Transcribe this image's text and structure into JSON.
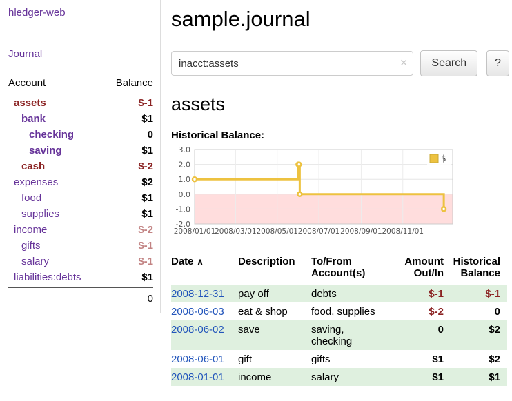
{
  "app": {
    "brand": "hledger-web",
    "nav": {
      "journal_label": "Journal"
    }
  },
  "sidebar": {
    "account_header": "Account",
    "balance_header": "Balance",
    "accounts": [
      {
        "name": "assets",
        "indent": 0,
        "bold": true,
        "name_style": "neg-strong",
        "balance": "$-1",
        "bal_style": "neg-strong"
      },
      {
        "name": "bank",
        "indent": 1,
        "bold": true,
        "name_style": "link",
        "balance": "$1",
        "bal_style": "pos"
      },
      {
        "name": "checking",
        "indent": 2,
        "bold": true,
        "name_style": "link",
        "balance": "0",
        "bal_style": "pos"
      },
      {
        "name": "saving",
        "indent": 2,
        "bold": true,
        "name_style": "link",
        "balance": "$1",
        "bal_style": "pos"
      },
      {
        "name": "cash",
        "indent": 1,
        "bold": true,
        "name_style": "neg-strong",
        "balance": "$-2",
        "bal_style": "neg-strong"
      },
      {
        "name": "expenses",
        "indent": 0,
        "bold": false,
        "name_style": "link",
        "balance": "$2",
        "bal_style": "pos"
      },
      {
        "name": "food",
        "indent": 1,
        "bold": false,
        "name_style": "link",
        "balance": "$1",
        "bal_style": "pos"
      },
      {
        "name": "supplies",
        "indent": 1,
        "bold": false,
        "name_style": "link",
        "balance": "$1",
        "bal_style": "pos"
      },
      {
        "name": "income",
        "indent": 0,
        "bold": false,
        "name_style": "link",
        "balance": "$-2",
        "bal_style": "neg-soft"
      },
      {
        "name": "gifts",
        "indent": 1,
        "bold": false,
        "name_style": "link",
        "balance": "$-1",
        "bal_style": "neg-soft"
      },
      {
        "name": "salary",
        "indent": 1,
        "bold": false,
        "name_style": "link",
        "balance": "$-1",
        "bal_style": "neg-soft"
      },
      {
        "name": "liabilities:debts",
        "indent": 0,
        "bold": false,
        "name_style": "link",
        "balance": "$1",
        "bal_style": "pos"
      }
    ],
    "total": "0"
  },
  "main": {
    "title": "sample.journal",
    "search": {
      "value": "inacct:assets",
      "clear_icon": "×",
      "search_button": "Search",
      "help_button": "?"
    },
    "account_heading": "assets",
    "chart_label": "Historical Balance:"
  },
  "chart_data": {
    "type": "line",
    "title": "Historical Balance",
    "step": true,
    "xlim": [
      0,
      378
    ],
    "ylim": [
      -2,
      3
    ],
    "series": [
      {
        "name": "$",
        "color": "#edc240",
        "points": [
          {
            "date": "2008-01-01",
            "x": 0,
            "y": 1
          },
          {
            "date": "2008-06-01",
            "x": 152,
            "y": 2
          },
          {
            "date": "2008-06-02",
            "x": 153,
            "y": 2
          },
          {
            "date": "2008-06-03",
            "x": 154,
            "y": 0
          },
          {
            "date": "2008-12-31",
            "x": 365,
            "y": -1
          }
        ]
      }
    ],
    "x_ticks": [
      {
        "x": 0,
        "label": "2008/01/01"
      },
      {
        "x": 60,
        "label": "2008/03/01"
      },
      {
        "x": 121,
        "label": "2008/05/01"
      },
      {
        "x": 182,
        "label": "2008/07/01"
      },
      {
        "x": 244,
        "label": "2008/09/01"
      },
      {
        "x": 305,
        "label": "2008/11/01"
      }
    ],
    "y_ticks": [
      {
        "y": 3,
        "label": "3.0"
      },
      {
        "y": 2,
        "label": "2.0"
      },
      {
        "y": 1,
        "label": "1.0"
      },
      {
        "y": 0,
        "label": "0.0"
      },
      {
        "y": -1,
        "label": "-1.0"
      },
      {
        "y": -2,
        "label": "-2.0"
      }
    ],
    "legend": [
      {
        "label": "$",
        "color": "#edc240"
      }
    ],
    "legend_position": "top-right",
    "grid": true,
    "below_zero_fill": "#ffdddd"
  },
  "register": {
    "headers": {
      "date": "Date",
      "sort_indicator": "∧",
      "description": "Description",
      "accounts": "To/From Account(s)",
      "amount": "Amount Out/In",
      "balance": "Historical Balance"
    },
    "rows": [
      {
        "date": "2008-12-31",
        "description": "pay off",
        "accounts": "debts",
        "amount": "$-1",
        "amount_negative": true,
        "balance": "$-1",
        "balance_negative": true,
        "shaded": true
      },
      {
        "date": "2008-06-03",
        "description": "eat & shop",
        "accounts": "food, supplies",
        "amount": "$-2",
        "amount_negative": true,
        "balance": "0",
        "balance_negative": false,
        "shaded": false
      },
      {
        "date": "2008-06-02",
        "description": "save",
        "accounts": "saving, checking",
        "amount": "0",
        "amount_negative": false,
        "balance": "$2",
        "balance_negative": false,
        "shaded": true
      },
      {
        "date": "2008-06-01",
        "description": "gift",
        "accounts": "gifts",
        "amount": "$1",
        "amount_negative": false,
        "balance": "$2",
        "balance_negative": false,
        "shaded": false
      },
      {
        "date": "2008-01-01",
        "description": "income",
        "accounts": "salary",
        "amount": "$1",
        "amount_negative": false,
        "balance": "$1",
        "balance_negative": false,
        "shaded": true
      }
    ]
  },
  "colors": {
    "link_purple": "#663399",
    "date_link_blue": "#2255bb",
    "negative_strong": "#8b2323",
    "negative_soft": "#c28383",
    "row_stripe_green": "#dff0df",
    "chart_line_gold": "#edc240",
    "chart_below_zero_pink": "#ffdddd"
  }
}
